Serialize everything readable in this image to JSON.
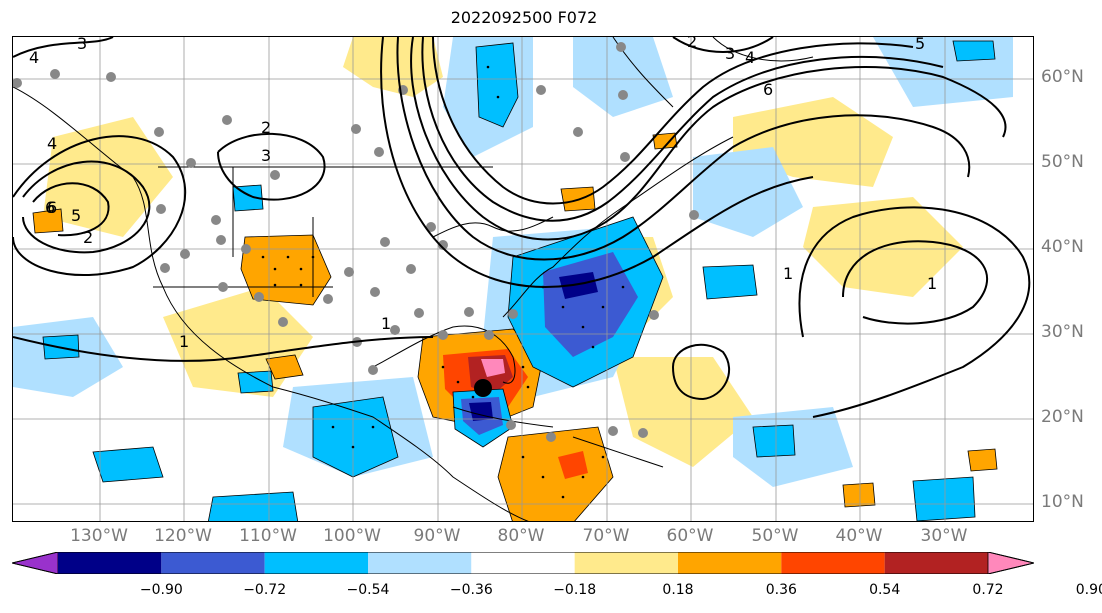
{
  "title": "2022092500 F072",
  "map": {
    "lon_ticks": [
      "130°W",
      "120°W",
      "110°W",
      "100°W",
      "90°W",
      "80°W",
      "70°W",
      "60°W",
      "50°W",
      "40°W",
      "30°W"
    ],
    "lat_ticks": [
      "60°N",
      "50°N",
      "40°N",
      "30°N",
      "20°N",
      "10°N"
    ],
    "contour_labels": [
      "4",
      "3",
      "2",
      "3",
      "4",
      "5",
      "6",
      "2",
      "3",
      "6",
      "4",
      "6",
      "5",
      "2",
      "1",
      "1",
      "1",
      "1"
    ],
    "colors": {
      "pos_light": "#ffea8c",
      "pos_orange": "#ffa500",
      "pos_red": "#ff4500",
      "pos_dark": "#b22222",
      "pos_pink": "#ff88bb",
      "neg_light": "#b0e0ff",
      "neg_cyan": "#00bfff",
      "neg_blue": "#3c5ad2",
      "neg_navy": "#000088",
      "neg_purple": "#9932cc"
    }
  },
  "colorbar": {
    "ticks": [
      "−0.90",
      "−0.72",
      "−0.54",
      "−0.36",
      "−0.18",
      "0.18",
      "0.36",
      "0.54",
      "0.72",
      "0.90"
    ],
    "colors": [
      "#9932cc",
      "#000088",
      "#3c5ad2",
      "#00bfff",
      "#b0e0ff",
      "#ffffff",
      "#ffea8c",
      "#ffa500",
      "#ff4500",
      "#b22222",
      "#ff88bb"
    ]
  }
}
